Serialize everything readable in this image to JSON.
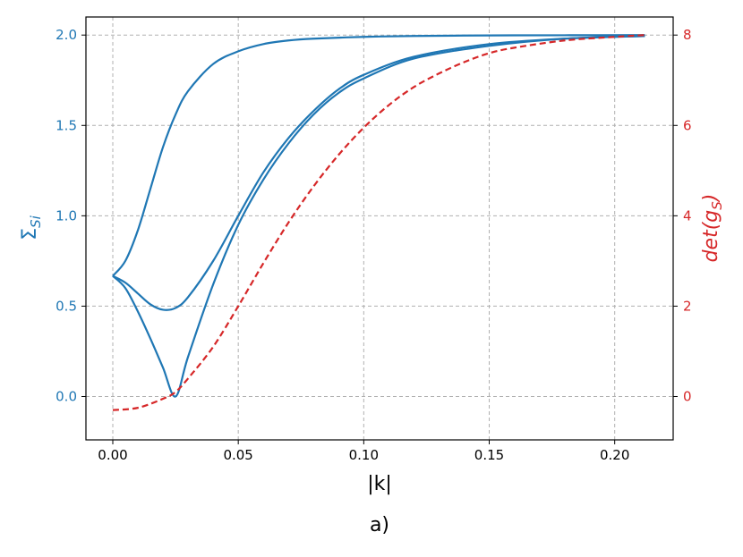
{
  "chart_data": {
    "type": "line",
    "caption": "a)",
    "xlabel": "|k|",
    "ylabel_left": "Σ_Si",
    "ylabel_right": "det(g_S)",
    "xlim": [
      -0.0107,
      0.2233
    ],
    "ylim_left": [
      -0.24,
      2.1
    ],
    "ylim_right": [
      -0.96,
      8.4
    ],
    "x_ticks": [
      0.0,
      0.05,
      0.1,
      0.15,
      0.2
    ],
    "x_tick_labels": [
      "0.00",
      "0.05",
      "0.10",
      "0.15",
      "0.20"
    ],
    "y_left_ticks": [
      0.0,
      0.5,
      1.0,
      1.5,
      2.0
    ],
    "y_left_tick_labels": [
      "0.0",
      "0.5",
      "1.0",
      "1.5",
      "2.0"
    ],
    "y_right_ticks": [
      0,
      2,
      4,
      6,
      8
    ],
    "y_right_tick_labels": [
      "0",
      "2",
      "4",
      "6",
      "8"
    ],
    "grid": true,
    "colors": {
      "left": "#1f77b4",
      "right": "#d62728",
      "grid": "#b0b0b0"
    },
    "series": [
      {
        "axis": "left",
        "style": "solid",
        "color": "#1f77b4",
        "x": [
          0.0,
          0.005,
          0.01,
          0.015,
          0.02,
          0.025,
          0.03,
          0.04,
          0.05,
          0.06,
          0.07,
          0.08,
          0.1,
          0.12,
          0.15,
          0.18,
          0.212
        ],
        "y": [
          0.667,
          0.75,
          0.92,
          1.15,
          1.38,
          1.56,
          1.69,
          1.84,
          1.91,
          1.95,
          1.97,
          1.98,
          1.99,
          1.995,
          1.998,
          1.999,
          2.0
        ]
      },
      {
        "axis": "left",
        "style": "solid",
        "color": "#1f77b4",
        "x": [
          0.0,
          0.005,
          0.01,
          0.015,
          0.02,
          0.025,
          0.03,
          0.04,
          0.05,
          0.06,
          0.07,
          0.08,
          0.09,
          0.1,
          0.12,
          0.15,
          0.18,
          0.212
        ],
        "y": [
          0.667,
          0.63,
          0.57,
          0.51,
          0.48,
          0.49,
          0.55,
          0.75,
          1.0,
          1.24,
          1.43,
          1.58,
          1.7,
          1.78,
          1.88,
          1.95,
          1.98,
          1.995
        ]
      },
      {
        "axis": "left",
        "style": "solid",
        "color": "#1f77b4",
        "x": [
          0.0,
          0.005,
          0.01,
          0.015,
          0.02,
          0.025,
          0.03,
          0.04,
          0.05,
          0.06,
          0.07,
          0.08,
          0.09,
          0.1,
          0.12,
          0.15,
          0.18,
          0.212
        ],
        "y": [
          0.667,
          0.6,
          0.47,
          0.32,
          0.16,
          0.0,
          0.22,
          0.62,
          0.95,
          1.2,
          1.4,
          1.56,
          1.68,
          1.76,
          1.87,
          1.94,
          1.98,
          1.995
        ]
      },
      {
        "axis": "right",
        "style": "dashed",
        "color": "#d62728",
        "x": [
          0.0,
          0.01,
          0.02,
          0.025,
          0.03,
          0.04,
          0.05,
          0.06,
          0.07,
          0.08,
          0.09,
          0.1,
          0.11,
          0.12,
          0.13,
          0.14,
          0.15,
          0.16,
          0.18,
          0.2,
          0.212
        ],
        "y": [
          -0.3,
          -0.25,
          -0.05,
          0.1,
          0.4,
          1.1,
          2.0,
          2.95,
          3.85,
          4.65,
          5.35,
          5.95,
          6.45,
          6.85,
          7.15,
          7.4,
          7.6,
          7.72,
          7.88,
          7.96,
          8.0
        ]
      }
    ]
  }
}
